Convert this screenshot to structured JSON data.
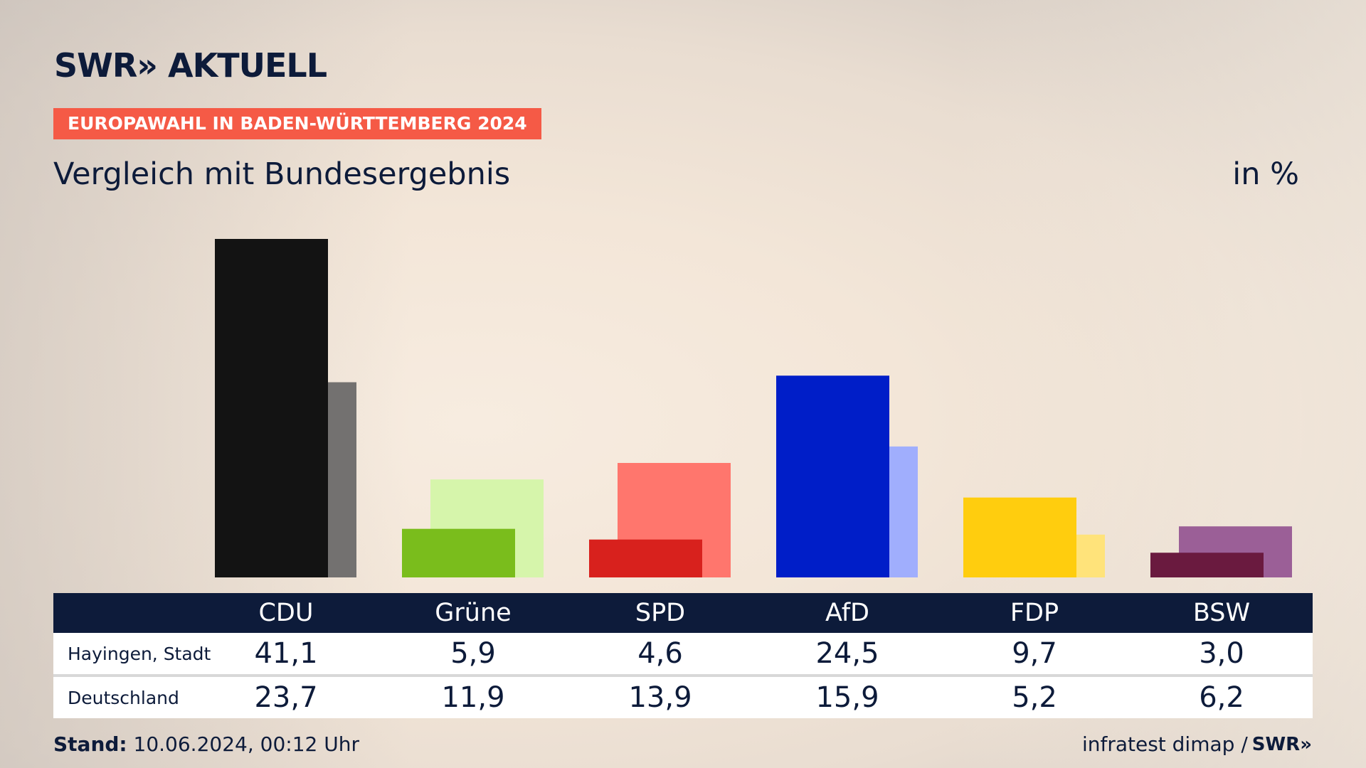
{
  "header": {
    "logo_text": "SWR» AKTUELL",
    "badge": "EUROPAWAHL IN BADEN-WÜRTTEMBERG 2024",
    "subtitle": "Vergleich mit Bundesergebnis",
    "unit": "in %"
  },
  "chart_data": {
    "type": "bar",
    "title": "Vergleich mit Bundesergebnis",
    "unit": "in %",
    "categories": [
      "CDU",
      "Grüne",
      "SPD",
      "AfD",
      "FDP",
      "BSW"
    ],
    "series": [
      {
        "name": "Hayingen, Stadt",
        "values": [
          41.1,
          5.9,
          4.6,
          24.5,
          9.7,
          3.0
        ],
        "colors": [
          "#131313",
          "#7abd1c",
          "#d8211d",
          "#001ec8",
          "#ffcd0e",
          "#6a1a3f"
        ]
      },
      {
        "name": "Deutschland",
        "values": [
          23.7,
          11.9,
          13.9,
          15.9,
          5.2,
          6.2
        ],
        "colors": [
          "#737170",
          "#d6f5ab",
          "#ff766d",
          "#a0aefd",
          "#ffe37a",
          "#9b5f97"
        ]
      }
    ],
    "ylim": [
      0,
      45
    ],
    "grid": false,
    "legend": "table-below"
  },
  "table": {
    "rows": [
      {
        "label": "Hayingen, Stadt",
        "values": [
          "41,1",
          "5,9",
          "4,6",
          "24,5",
          "9,7",
          "3,0"
        ]
      },
      {
        "label": "Deutschland",
        "values": [
          "23,7",
          "11,9",
          "13,9",
          "15,9",
          "5,2",
          "6,2"
        ]
      }
    ]
  },
  "footer": {
    "stand_label": "Stand:",
    "stand_value": " 10.06.2024, 00:12 Uhr",
    "source": "infratest dimap /",
    "source_logo": "SWR»"
  }
}
